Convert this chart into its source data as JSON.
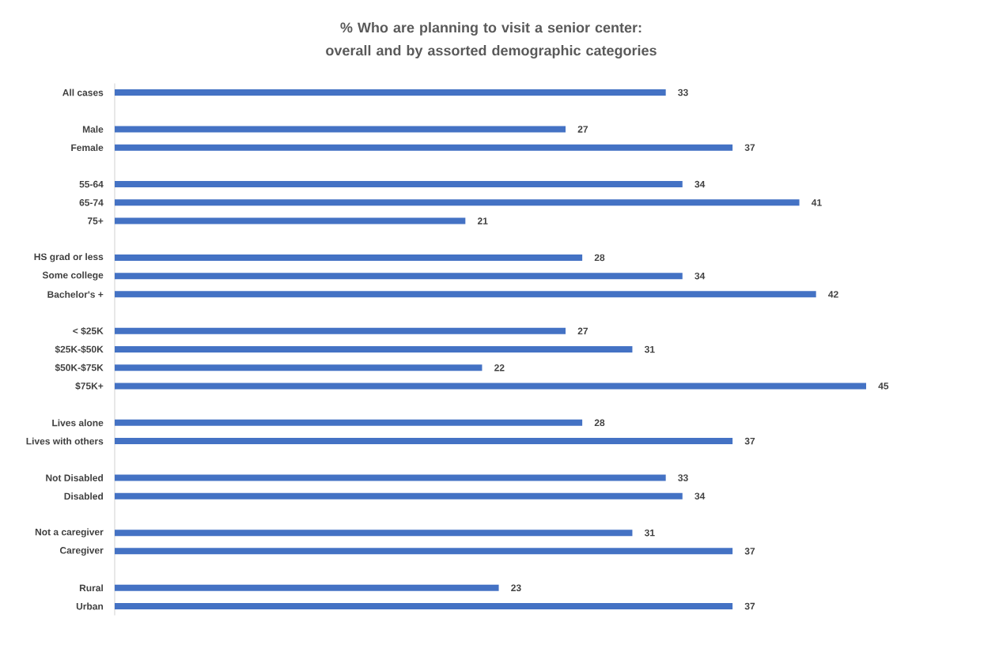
{
  "chart_data": {
    "type": "bar",
    "orientation": "horizontal",
    "title": "% Who are planning to visit a senior center: overall and by assorted demographic categories",
    "categories": [
      "All cases",
      null,
      "Male",
      "Female",
      null,
      "55-64",
      "65-74",
      "75+",
      null,
      "HS grad or less",
      "Some college",
      "Bachelor's +",
      null,
      "< $25K",
      "$25K-$50K",
      "$50K-$75K",
      "$75K+",
      null,
      "Lives alone",
      "Lives with others",
      null,
      "Not Disabled",
      "Disabled",
      null,
      "Not a caregiver",
      "Caregiver",
      null,
      "Rural",
      "Urban"
    ],
    "values": [
      33,
      null,
      27,
      37,
      null,
      34,
      41,
      21,
      null,
      28,
      34,
      42,
      null,
      27,
      31,
      22,
      45,
      null,
      28,
      37,
      null,
      33,
      34,
      null,
      31,
      37,
      null,
      23,
      37
    ],
    "color": "#4472c4",
    "data_labels": true,
    "tick_labels": "y"
  }
}
